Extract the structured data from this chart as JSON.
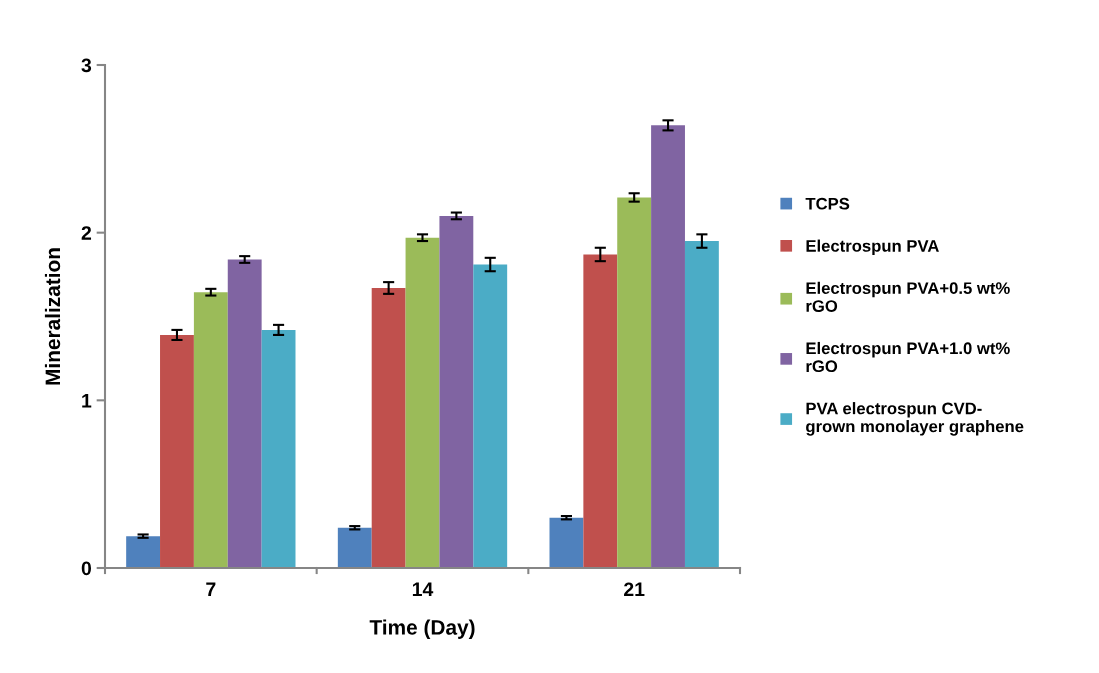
{
  "chart_data": {
    "type": "bar",
    "xlabel": "Time (Day)",
    "ylabel": "Mineralization",
    "categories": [
      "7",
      "14",
      "21"
    ],
    "series": [
      {
        "name": "TCPS",
        "color": "#4f81bd",
        "values": [
          0.19,
          0.24,
          0.3
        ],
        "errors": [
          0.01,
          0.01,
          0.01
        ]
      },
      {
        "name": "Electrospun PVA",
        "color": "#c0504d",
        "values": [
          1.39,
          1.67,
          1.87
        ],
        "errors": [
          0.03,
          0.035,
          0.04
        ]
      },
      {
        "name": "Electrospun PVA+0.5 wt%\nrGO",
        "color": "#9bbb59",
        "values": [
          1.645,
          1.97,
          2.21
        ],
        "errors": [
          0.02,
          0.02,
          0.025
        ]
      },
      {
        "name": "Electrospun PVA+1.0 wt%\nrGO",
        "color": "#8064a2",
        "values": [
          1.84,
          2.1,
          2.64
        ],
        "errors": [
          0.02,
          0.02,
          0.03
        ]
      },
      {
        "name": "PVA electrospun CVD-\ngrown monolayer graphene",
        "color": "#4bacc6",
        "values": [
          1.42,
          1.81,
          1.95
        ],
        "errors": [
          0.03,
          0.04,
          0.04
        ]
      }
    ],
    "ylim": [
      0,
      3
    ],
    "yticks": [
      0,
      1,
      2,
      3
    ],
    "grid": false,
    "legend": "right"
  }
}
